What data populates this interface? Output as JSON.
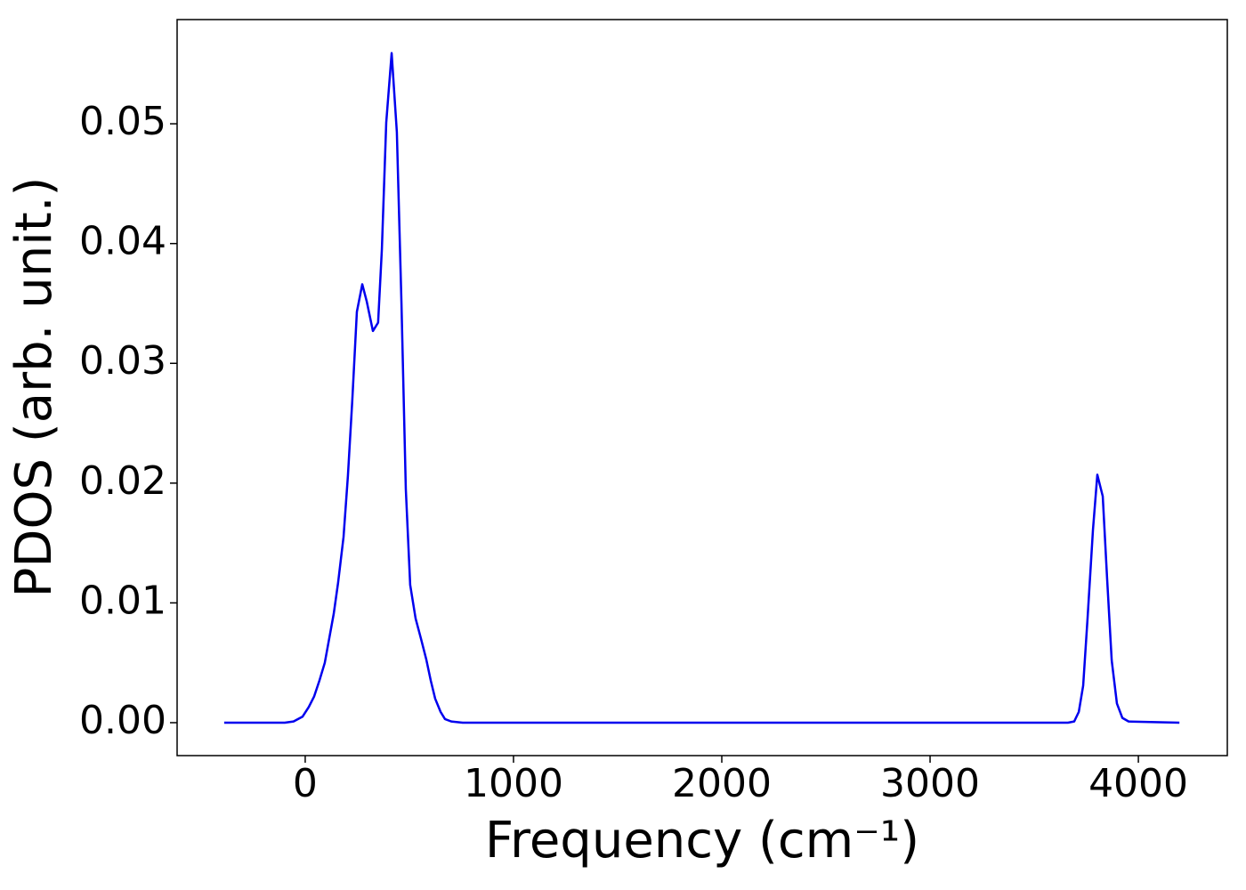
{
  "chart_data": {
    "type": "line",
    "xlabel": "Frequency (cm⁻¹)",
    "ylabel": "PDOS (arb. unit.)",
    "xlim": [
      -615,
      4427
    ],
    "ylim": [
      -0.00275,
      0.0587
    ],
    "xticks": [
      0,
      1000,
      2000,
      3000,
      4000
    ],
    "yticks": [
      {
        "value": 0,
        "label": "0.00"
      },
      0.01,
      0.02,
      0.03,
      0.04,
      0.05
    ],
    "x": [
      -389,
      -98,
      -56,
      -13,
      17,
      43,
      68,
      94,
      115,
      137,
      158,
      184,
      205,
      226,
      248,
      274,
      295,
      325,
      350,
      368,
      389,
      415,
      440,
      462,
      483,
      504,
      530,
      556,
      581,
      603,
      624,
      650,
      671,
      701,
      756,
      3662,
      3692,
      3714,
      3735,
      3756,
      3782,
      3803,
      3829,
      3850,
      3872,
      3897,
      3923,
      3953,
      4197
    ],
    "series": [
      {
        "color": "#0000ee",
        "values": [
          0,
          0,
          0.0001,
          0.0005,
          0.0013,
          0.0022,
          0.0035,
          0.005,
          0.007,
          0.0091,
          0.0117,
          0.0155,
          0.0206,
          0.0269,
          0.0343,
          0.0366,
          0.0352,
          0.0327,
          0.0334,
          0.0395,
          0.0501,
          0.0559,
          0.0493,
          0.0351,
          0.0195,
          0.0115,
          0.0087,
          0.007,
          0.0053,
          0.0035,
          0.002,
          0.0009,
          0.0003,
          0.0001,
          0,
          0,
          0.0001,
          0.0009,
          0.0031,
          0.0087,
          0.0161,
          0.0207,
          0.0189,
          0.012,
          0.0052,
          0.0016,
          0.0004,
          0.0001,
          0
        ]
      }
    ]
  }
}
